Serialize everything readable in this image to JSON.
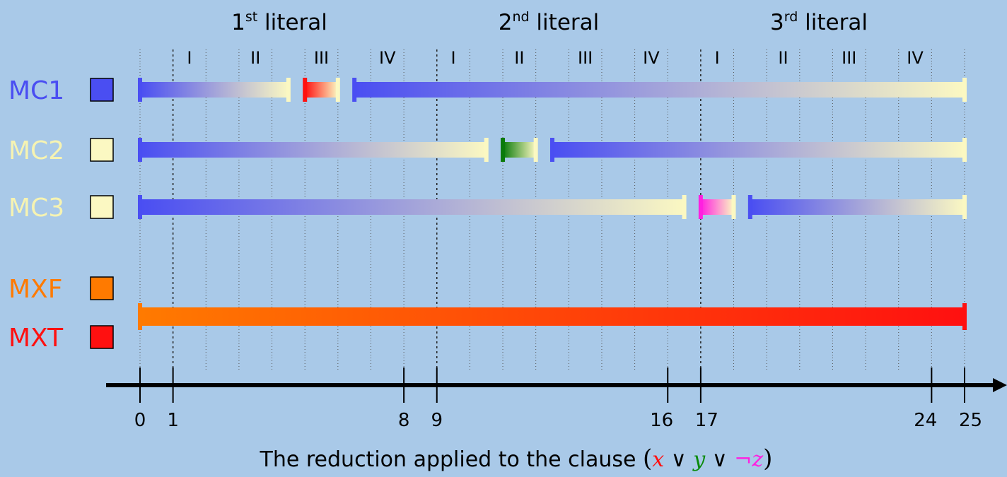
{
  "literal_headers": [
    {
      "num": "1",
      "sup": "st",
      "word": " literal"
    },
    {
      "num": "2",
      "sup": "nd",
      "word": " literal"
    },
    {
      "num": "3",
      "sup": "rd",
      "word": " literal"
    }
  ],
  "phase_labels": [
    "I",
    "II",
    "III",
    "IV",
    "I",
    "II",
    "III",
    "IV",
    "I",
    "II",
    "III",
    "IV"
  ],
  "rows": [
    {
      "name": "MC1",
      "text_color": "#4a4ef2",
      "swatch_color": "#4a4ef2"
    },
    {
      "name": "MC2",
      "text_color": "#f6f3b2",
      "swatch_color": "#fbf8c2"
    },
    {
      "name": "MC3",
      "text_color": "#f6f3b2",
      "swatch_color": "#fbf8c2"
    },
    {
      "name": "MXF",
      "text_color": "#ff7a00",
      "swatch_color": "#ff7a00"
    },
    {
      "name": "MXT",
      "text_color": "#ff1010",
      "swatch_color": "#ff1010"
    }
  ],
  "segments": [
    {
      "row": 0,
      "from": 0,
      "to": 4.5,
      "color_start": "#4a4ef2",
      "color_end": "#fbf8c2"
    },
    {
      "row": 0,
      "from": 5,
      "to": 6,
      "color_start": "#ff1010",
      "color_end": "#fbf8c2"
    },
    {
      "row": 0,
      "from": 6.5,
      "to": 25,
      "color_start": "#4a4ef2",
      "color_end": "#fbf8c2"
    },
    {
      "row": 1,
      "from": 0,
      "to": 10.5,
      "color_start": "#4a4ef2",
      "color_end": "#fbf8c2"
    },
    {
      "row": 1,
      "from": 11,
      "to": 12,
      "color_start": "#0a7a0a",
      "color_end": "#fbf8c2"
    },
    {
      "row": 1,
      "from": 12.5,
      "to": 25,
      "color_start": "#4a4ef2",
      "color_end": "#fbf8c2"
    },
    {
      "row": 2,
      "from": 0,
      "to": 16.5,
      "color_start": "#4a4ef2",
      "color_end": "#fbf8c2"
    },
    {
      "row": 2,
      "from": 17,
      "to": 18,
      "color_start": "#ff20e0",
      "color_end": "#fbf8c2"
    },
    {
      "row": 2,
      "from": 18.5,
      "to": 25,
      "color_start": "#4a4ef2",
      "color_end": "#fbf8c2"
    },
    {
      "row": 3,
      "from": 0,
      "to": 25,
      "color_start": "#ff7a00",
      "color_end": "#ff1010"
    }
  ],
  "axis": {
    "min": 0,
    "max": 25,
    "ticks": [
      {
        "value": 0,
        "label": "0"
      },
      {
        "value": 1,
        "label": "1"
      },
      {
        "value": 8,
        "label": "8"
      },
      {
        "value": 9,
        "label": "9"
      },
      {
        "value": 16,
        "label": "16"
      },
      {
        "value": 17,
        "label": "17"
      },
      {
        "value": 24,
        "label": "24"
      },
      {
        "value": 25,
        "label": "25"
      }
    ],
    "major_gridlines": [
      1,
      9,
      17
    ],
    "minor_gridlines": [
      0,
      2,
      3,
      4,
      5,
      6,
      7,
      8,
      10,
      11,
      12,
      13,
      14,
      15,
      16,
      18,
      19,
      20,
      21,
      22,
      23,
      24,
      25
    ]
  },
  "caption": {
    "text": "The reduction applied to the clause ",
    "open": "(",
    "x": "x",
    "or1": " ∨ ",
    "y": "y",
    "or2": " ∨ ",
    "not_z": "¬z",
    "close": ")",
    "x_color": "#ff1010",
    "y_color": "#0a8a0a",
    "not_z_color": "#ff20e0"
  }
}
